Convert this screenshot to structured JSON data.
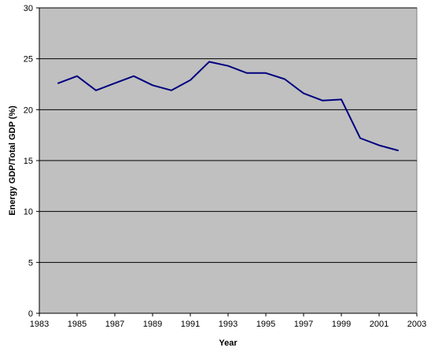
{
  "chart_data": {
    "type": "line",
    "title": "",
    "xlabel": "Year",
    "ylabel": "Energy GDP/Total GDP (%)",
    "xlim": [
      1983,
      2003
    ],
    "ylim": [
      0,
      30
    ],
    "x_ticks": [
      1983,
      1985,
      1987,
      1989,
      1991,
      1993,
      1995,
      1997,
      1999,
      2001,
      2003
    ],
    "y_ticks": [
      0,
      5,
      10,
      15,
      20,
      25,
      30
    ],
    "grid": "horizontal",
    "legend": "none",
    "plot_background": "#c0c0c0",
    "series": [
      {
        "color": "#000080",
        "x": [
          1984,
          1985,
          1986,
          1987,
          1988,
          1989,
          1990,
          1991,
          1992,
          1993,
          1994,
          1995,
          1996,
          1997,
          1998,
          1999,
          2000,
          2001,
          2002
        ],
        "values": [
          22.6,
          23.3,
          21.9,
          22.6,
          23.3,
          22.4,
          21.9,
          22.9,
          24.7,
          24.3,
          23.6,
          23.6,
          23.0,
          21.6,
          20.9,
          21.0,
          17.2,
          16.5,
          16.0
        ]
      }
    ]
  }
}
